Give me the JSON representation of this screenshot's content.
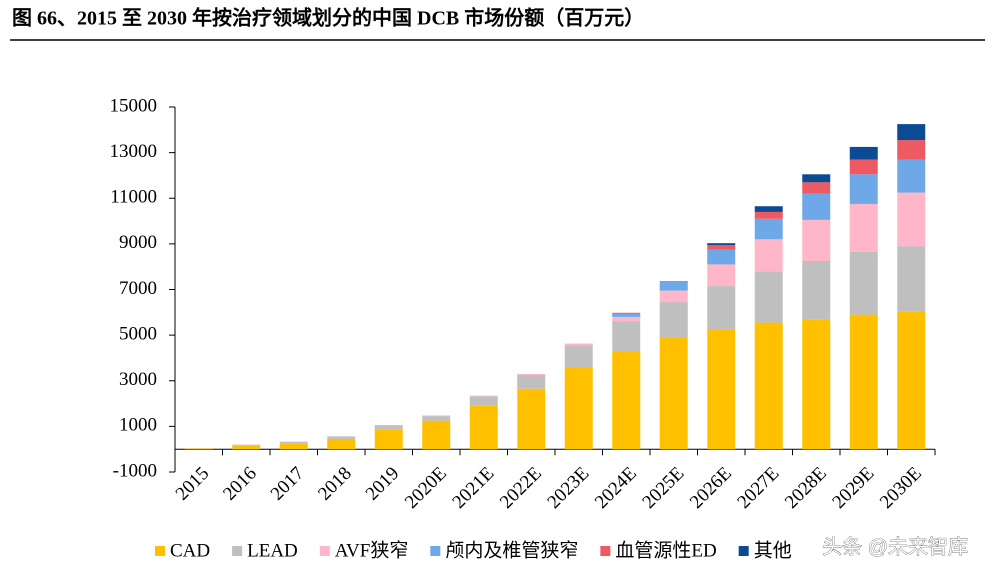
{
  "chart_data": {
    "type": "stacked_bar",
    "title": "图 66、2015 至 2030 年按治疗领域划分的中国 DCB 市场份额（百万元）",
    "categories": [
      "2015",
      "2016",
      "2017",
      "2018",
      "2019",
      "2020E",
      "2021E",
      "2022E",
      "2023E",
      "2024E",
      "2025E",
      "2026E",
      "2027E",
      "2028E",
      "2029E",
      "2030E"
    ],
    "series": [
      {
        "name": "CAD",
        "color": "#FFC000",
        "values": [
          30,
          150,
          260,
          450,
          870,
          1250,
          1900,
          2650,
          3600,
          4300,
          4900,
          5250,
          5550,
          5700,
          5900,
          6050
        ]
      },
      {
        "name": "LEAD",
        "color": "#BFBFBF",
        "values": [
          10,
          50,
          70,
          110,
          170,
          200,
          420,
          600,
          950,
          1300,
          1550,
          1900,
          2250,
          2550,
          2750,
          2850
        ]
      },
      {
        "name": "AVF狭窄",
        "color": "#FFB6C8",
        "values": [
          0,
          0,
          0,
          0,
          20,
          30,
          30,
          50,
          80,
          200,
          500,
          950,
          1400,
          1800,
          2100,
          2350
        ]
      },
      {
        "name": "颅内及椎管狭窄",
        "color": "#6FA8E6",
        "values": [
          0,
          0,
          0,
          0,
          0,
          0,
          0,
          0,
          0,
          150,
          400,
          650,
          900,
          1150,
          1300,
          1450
        ]
      },
      {
        "name": "血管源性ED",
        "color": "#EE5A62",
        "values": [
          0,
          0,
          0,
          0,
          0,
          0,
          0,
          0,
          0,
          30,
          20,
          200,
          300,
          500,
          650,
          850
        ]
      },
      {
        "name": "其他",
        "color": "#0D4A94",
        "values": [
          0,
          0,
          0,
          0,
          0,
          0,
          0,
          0,
          0,
          0,
          0,
          80,
          250,
          350,
          550,
          700
        ]
      }
    ],
    "ylim": [
      -1000,
      15000
    ],
    "yticks": [
      -1000,
      1000,
      3000,
      5000,
      7000,
      9000,
      11000,
      13000,
      15000
    ],
    "watermark": "头条 @未来智库"
  }
}
